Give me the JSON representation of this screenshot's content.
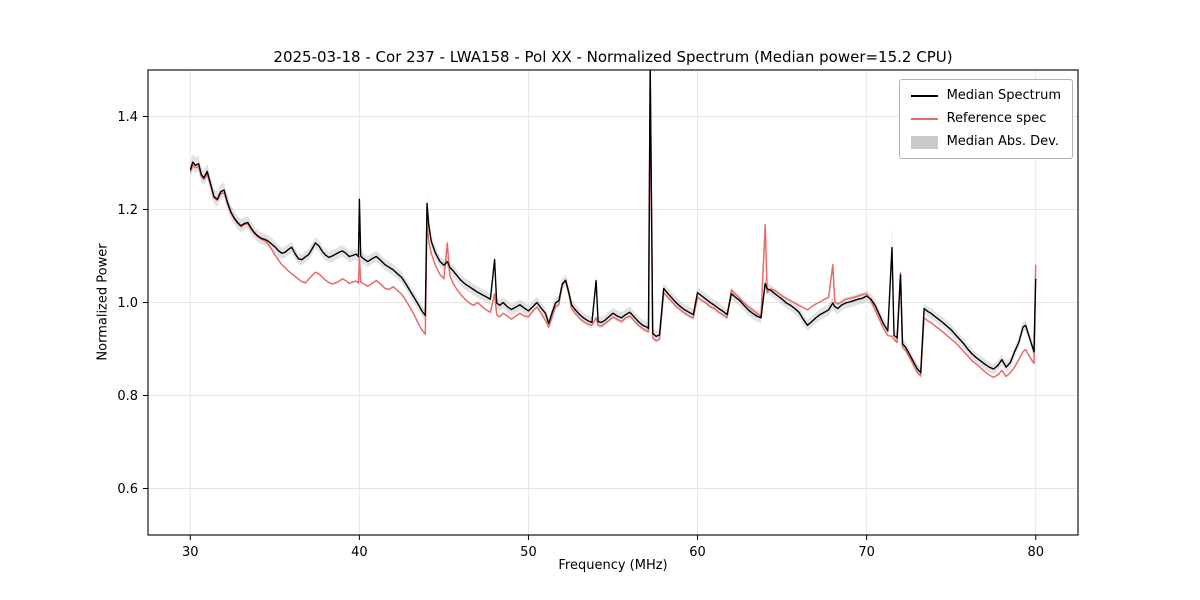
{
  "chart_data": {
    "type": "line",
    "title": "2025-03-18 - Cor 237 - LWA158 - Pol XX - Normalized Spectrum (Median power=15.2 CPU)",
    "xlabel": "Frequency (MHz)",
    "ylabel": "Normalized Power",
    "xlim": [
      27.5,
      82.5
    ],
    "ylim": [
      0.5,
      1.5
    ],
    "x_ticks": [
      30,
      40,
      50,
      60,
      70,
      80
    ],
    "y_ticks": [
      0.6,
      0.8,
      1.0,
      1.2,
      1.4
    ],
    "grid": true,
    "legend_position": "upper right",
    "colors": {
      "median": "#000000",
      "reference": "#ea6a6a",
      "mad_band": "#bfbfbf",
      "grid": "#e5e5e5",
      "frame": "#000000"
    },
    "series": [
      {
        "name": "Median Spectrum",
        "color": "#000000",
        "style": "line"
      },
      {
        "name": "Reference spec",
        "color": "#ea6a6a",
        "style": "line"
      },
      {
        "name": "Median Abs. Dev.",
        "color": "#c9c9c9",
        "style": "patch"
      }
    ],
    "points_format": [
      "frequency_mhz",
      "median",
      "reference",
      "mad"
    ],
    "points": [
      [
        30.0,
        1.285,
        1.28,
        0.018
      ],
      [
        30.15,
        1.302,
        1.295,
        0.018
      ],
      [
        30.3,
        1.295,
        1.29,
        0.017
      ],
      [
        30.5,
        1.298,
        1.292,
        0.017
      ],
      [
        30.65,
        1.275,
        1.272,
        0.016
      ],
      [
        30.8,
        1.268,
        1.265,
        0.016
      ],
      [
        31.0,
        1.282,
        1.276,
        0.016
      ],
      [
        31.2,
        1.255,
        1.252,
        0.016
      ],
      [
        31.4,
        1.228,
        1.225,
        0.016
      ],
      [
        31.6,
        1.222,
        1.22,
        0.016
      ],
      [
        31.8,
        1.238,
        1.234,
        0.016
      ],
      [
        32.0,
        1.242,
        1.236,
        0.016
      ],
      [
        32.2,
        1.215,
        1.212,
        0.015
      ],
      [
        32.4,
        1.195,
        1.192,
        0.015
      ],
      [
        32.6,
        1.182,
        1.18,
        0.015
      ],
      [
        32.8,
        1.172,
        1.17,
        0.014
      ],
      [
        33.0,
        1.165,
        1.163,
        0.014
      ],
      [
        33.2,
        1.17,
        1.168,
        0.014
      ],
      [
        33.4,
        1.172,
        1.169,
        0.014
      ],
      [
        33.6,
        1.16,
        1.158,
        0.014
      ],
      [
        33.8,
        1.15,
        1.148,
        0.013
      ],
      [
        34.0,
        1.143,
        1.141,
        0.013
      ],
      [
        34.2,
        1.138,
        1.136,
        0.013
      ],
      [
        34.4,
        1.136,
        1.133,
        0.013
      ],
      [
        34.6,
        1.132,
        1.126,
        0.013
      ],
      [
        34.8,
        1.126,
        1.115,
        0.013
      ],
      [
        35.0,
        1.12,
        1.103,
        0.013
      ],
      [
        35.2,
        1.112,
        1.092,
        0.013
      ],
      [
        35.4,
        1.106,
        1.082,
        0.012
      ],
      [
        35.6,
        1.108,
        1.075,
        0.012
      ],
      [
        35.8,
        1.114,
        1.068,
        0.012
      ],
      [
        36.0,
        1.119,
        1.062,
        0.012
      ],
      [
        36.2,
        1.105,
        1.056,
        0.012
      ],
      [
        36.4,
        1.094,
        1.05,
        0.012
      ],
      [
        36.6,
        1.092,
        1.045,
        0.012
      ],
      [
        36.8,
        1.098,
        1.042,
        0.012
      ],
      [
        37.0,
        1.103,
        1.05,
        0.012
      ],
      [
        37.2,
        1.115,
        1.058,
        0.012
      ],
      [
        37.4,
        1.128,
        1.065,
        0.012
      ],
      [
        37.6,
        1.122,
        1.062,
        0.012
      ],
      [
        37.8,
        1.11,
        1.055,
        0.012
      ],
      [
        38.0,
        1.102,
        1.048,
        0.012
      ],
      [
        38.2,
        1.097,
        1.043,
        0.012
      ],
      [
        38.4,
        1.1,
        1.04,
        0.012
      ],
      [
        38.6,
        1.104,
        1.042,
        0.012
      ],
      [
        38.8,
        1.108,
        1.046,
        0.012
      ],
      [
        39.0,
        1.111,
        1.051,
        0.012
      ],
      [
        39.2,
        1.106,
        1.047,
        0.012
      ],
      [
        39.4,
        1.099,
        1.041,
        0.012
      ],
      [
        39.6,
        1.101,
        1.044,
        0.012
      ],
      [
        39.8,
        1.104,
        1.046,
        0.012
      ],
      [
        39.95,
        1.099,
        1.042,
        0.013
      ],
      [
        40.0,
        1.222,
        1.098,
        0.038
      ],
      [
        40.08,
        1.1,
        1.044,
        0.014
      ],
      [
        40.25,
        1.094,
        1.04,
        0.012
      ],
      [
        40.5,
        1.088,
        1.035,
        0.012
      ],
      [
        40.75,
        1.094,
        1.041,
        0.012
      ],
      [
        41.0,
        1.099,
        1.047,
        0.012
      ],
      [
        41.25,
        1.091,
        1.04,
        0.012
      ],
      [
        41.5,
        1.082,
        1.031,
        0.012
      ],
      [
        41.75,
        1.076,
        1.028,
        0.012
      ],
      [
        42.0,
        1.07,
        1.034,
        0.012
      ],
      [
        42.25,
        1.062,
        1.026,
        0.012
      ],
      [
        42.5,
        1.054,
        1.018,
        0.012
      ],
      [
        42.75,
        1.04,
        1.004,
        0.012
      ],
      [
        43.0,
        1.025,
        0.989,
        0.012
      ],
      [
        43.25,
        1.01,
        0.973,
        0.012
      ],
      [
        43.5,
        0.995,
        0.954,
        0.012
      ],
      [
        43.7,
        0.982,
        0.941,
        0.012
      ],
      [
        43.9,
        0.972,
        0.932,
        0.012
      ],
      [
        44.0,
        1.213,
        1.172,
        0.02
      ],
      [
        44.1,
        1.168,
        1.132,
        0.016
      ],
      [
        44.25,
        1.132,
        1.106,
        0.014
      ],
      [
        44.5,
        1.106,
        1.08,
        0.013
      ],
      [
        44.75,
        1.089,
        1.061,
        0.012
      ],
      [
        45.0,
        1.08,
        1.051,
        0.012
      ],
      [
        45.2,
        1.088,
        1.128,
        0.013
      ],
      [
        45.35,
        1.076,
        1.058,
        0.012
      ],
      [
        45.55,
        1.068,
        1.041,
        0.012
      ],
      [
        45.75,
        1.059,
        1.029,
        0.012
      ],
      [
        46.0,
        1.048,
        1.017,
        0.012
      ],
      [
        46.25,
        1.04,
        1.007,
        0.012
      ],
      [
        46.5,
        1.034,
        0.999,
        0.012
      ],
      [
        46.75,
        1.028,
        0.994,
        0.012
      ],
      [
        47.0,
        1.022,
        1.0,
        0.012
      ],
      [
        47.25,
        1.017,
        0.991,
        0.012
      ],
      [
        47.5,
        1.012,
        0.984,
        0.012
      ],
      [
        47.75,
        1.007,
        0.979,
        0.012
      ],
      [
        48.0,
        1.092,
        1.019,
        0.015
      ],
      [
        48.12,
        0.999,
        0.974,
        0.012
      ],
      [
        48.3,
        0.994,
        0.969,
        0.012
      ],
      [
        48.5,
        1.0,
        0.977,
        0.012
      ],
      [
        48.75,
        0.991,
        0.971,
        0.012
      ],
      [
        49.0,
        0.985,
        0.964,
        0.012
      ],
      [
        49.25,
        0.99,
        0.971,
        0.012
      ],
      [
        49.5,
        0.995,
        0.977,
        0.012
      ],
      [
        49.75,
        0.988,
        0.971,
        0.012
      ],
      [
        50.0,
        0.982,
        0.969,
        0.012
      ],
      [
        50.25,
        0.991,
        0.981,
        0.012
      ],
      [
        50.5,
        1.0,
        0.99,
        0.012
      ],
      [
        50.75,
        0.988,
        0.977,
        0.012
      ],
      [
        51.0,
        0.977,
        0.961,
        0.012
      ],
      [
        51.2,
        0.955,
        0.947,
        0.012
      ],
      [
        51.4,
        0.978,
        0.968,
        0.012
      ],
      [
        51.6,
        0.999,
        0.99,
        0.012
      ],
      [
        51.8,
        1.004,
        0.996,
        0.012
      ],
      [
        52.0,
        1.04,
        1.039,
        0.012
      ],
      [
        52.2,
        1.048,
        1.045,
        0.012
      ],
      [
        52.4,
        1.02,
        1.017,
        0.012
      ],
      [
        52.55,
        0.995,
        0.987,
        0.012
      ],
      [
        52.75,
        0.985,
        0.977,
        0.012
      ],
      [
        53.0,
        0.975,
        0.967,
        0.012
      ],
      [
        53.25,
        0.967,
        0.959,
        0.012
      ],
      [
        53.5,
        0.961,
        0.954,
        0.012
      ],
      [
        53.75,
        0.957,
        0.951,
        0.012
      ],
      [
        54.0,
        1.047,
        0.967,
        0.014
      ],
      [
        54.12,
        0.959,
        0.951,
        0.012
      ],
      [
        54.3,
        0.957,
        0.949,
        0.012
      ],
      [
        54.5,
        0.961,
        0.954,
        0.012
      ],
      [
        54.75,
        0.969,
        0.961,
        0.012
      ],
      [
        55.0,
        0.977,
        0.969,
        0.012
      ],
      [
        55.25,
        0.971,
        0.964,
        0.012
      ],
      [
        55.5,
        0.967,
        0.959,
        0.012
      ],
      [
        55.75,
        0.974,
        0.967,
        0.012
      ],
      [
        56.0,
        0.979,
        0.971,
        0.012
      ],
      [
        56.25,
        0.969,
        0.961,
        0.012
      ],
      [
        56.5,
        0.959,
        0.951,
        0.012
      ],
      [
        56.75,
        0.951,
        0.944,
        0.012
      ],
      [
        57.0,
        0.947,
        0.939,
        0.012
      ],
      [
        57.1,
        0.944,
        0.937,
        0.012
      ],
      [
        57.2,
        1.505,
        1.495,
        0.015
      ],
      [
        57.35,
        0.934,
        0.924,
        0.012
      ],
      [
        57.55,
        0.927,
        0.917,
        0.012
      ],
      [
        57.75,
        0.93,
        0.921,
        0.012
      ],
      [
        58.0,
        1.03,
        1.021,
        0.012
      ],
      [
        58.25,
        1.019,
        1.011,
        0.012
      ],
      [
        58.5,
        1.009,
        1.001,
        0.012
      ],
      [
        58.75,
        0.999,
        0.991,
        0.012
      ],
      [
        59.0,
        0.991,
        0.984,
        0.012
      ],
      [
        59.25,
        0.984,
        0.977,
        0.012
      ],
      [
        59.5,
        0.979,
        0.971,
        0.012
      ],
      [
        59.75,
        0.974,
        0.967,
        0.012
      ],
      [
        60.0,
        1.021,
        1.011,
        0.012
      ],
      [
        60.25,
        1.014,
        1.004,
        0.012
      ],
      [
        60.5,
        1.007,
        0.999,
        0.012
      ],
      [
        60.75,
        1.0,
        0.991,
        0.012
      ],
      [
        61.0,
        0.994,
        0.987,
        0.012
      ],
      [
        61.25,
        0.987,
        0.979,
        0.012
      ],
      [
        61.5,
        0.981,
        0.974,
        0.012
      ],
      [
        61.75,
        0.974,
        0.967,
        0.012
      ],
      [
        62.0,
        1.019,
        1.027,
        0.012
      ],
      [
        62.25,
        1.011,
        1.017,
        0.012
      ],
      [
        62.5,
        1.004,
        1.009,
        0.012
      ],
      [
        62.75,
        0.994,
        0.999,
        0.012
      ],
      [
        63.0,
        0.984,
        0.991,
        0.012
      ],
      [
        63.25,
        0.977,
        0.984,
        0.012
      ],
      [
        63.5,
        0.971,
        0.977,
        0.012
      ],
      [
        63.75,
        0.967,
        0.971,
        0.012
      ],
      [
        64.0,
        1.041,
        1.167,
        0.014
      ],
      [
        64.12,
        1.029,
        1.021,
        0.012
      ],
      [
        64.3,
        1.027,
        1.029,
        0.012
      ],
      [
        64.5,
        1.021,
        1.027,
        0.012
      ],
      [
        64.75,
        1.014,
        1.021,
        0.012
      ],
      [
        65.0,
        1.007,
        1.014,
        0.012
      ],
      [
        65.25,
        0.999,
        1.009,
        0.012
      ],
      [
        65.5,
        0.994,
        1.004,
        0.012
      ],
      [
        65.75,
        0.987,
        0.999,
        0.012
      ],
      [
        66.0,
        0.979,
        0.994,
        0.012
      ],
      [
        66.25,
        0.964,
        0.989,
        0.012
      ],
      [
        66.5,
        0.951,
        0.984,
        0.012
      ],
      [
        66.75,
        0.959,
        0.991,
        0.012
      ],
      [
        67.0,
        0.967,
        0.997,
        0.012
      ],
      [
        67.25,
        0.974,
        1.001,
        0.012
      ],
      [
        67.5,
        0.979,
        1.007,
        0.012
      ],
      [
        67.75,
        0.984,
        1.011,
        0.012
      ],
      [
        68.0,
        0.999,
        1.081,
        0.013
      ],
      [
        68.12,
        0.991,
        1.001,
        0.012
      ],
      [
        68.3,
        0.987,
        0.997,
        0.012
      ],
      [
        68.5,
        0.994,
        1.001,
        0.012
      ],
      [
        68.75,
        0.999,
        1.007,
        0.012
      ],
      [
        69.0,
        1.001,
        1.009,
        0.012
      ],
      [
        69.25,
        1.004,
        1.011,
        0.012
      ],
      [
        69.5,
        1.007,
        1.014,
        0.012
      ],
      [
        69.75,
        1.009,
        1.017,
        0.012
      ],
      [
        70.0,
        1.014,
        1.019,
        0.012
      ],
      [
        70.25,
        1.007,
        1.004,
        0.012
      ],
      [
        70.5,
        0.994,
        0.984,
        0.012
      ],
      [
        70.75,
        0.974,
        0.964,
        0.012
      ],
      [
        71.0,
        0.954,
        0.944,
        0.012
      ],
      [
        71.25,
        0.939,
        0.929,
        0.012
      ],
      [
        71.5,
        1.118,
        0.927,
        0.042
      ],
      [
        71.62,
        0.929,
        0.921,
        0.013
      ],
      [
        71.8,
        0.924,
        0.914,
        0.012
      ],
      [
        72.0,
        1.059,
        1.064,
        0.018
      ],
      [
        72.12,
        0.911,
        0.904,
        0.012
      ],
      [
        72.3,
        0.904,
        0.897,
        0.012
      ],
      [
        72.5,
        0.891,
        0.884,
        0.011
      ],
      [
        72.75,
        0.874,
        0.867,
        0.011
      ],
      [
        73.0,
        0.857,
        0.849,
        0.011
      ],
      [
        73.2,
        0.849,
        0.842,
        0.011
      ],
      [
        73.4,
        0.987,
        0.967,
        0.011
      ],
      [
        73.6,
        0.981,
        0.961,
        0.011
      ],
      [
        73.8,
        0.977,
        0.957,
        0.011
      ],
      [
        74.0,
        0.971,
        0.951,
        0.011
      ],
      [
        74.25,
        0.964,
        0.944,
        0.011
      ],
      [
        74.5,
        0.957,
        0.937,
        0.011
      ],
      [
        74.75,
        0.949,
        0.929,
        0.011
      ],
      [
        75.0,
        0.941,
        0.921,
        0.011
      ],
      [
        75.25,
        0.931,
        0.914,
        0.011
      ],
      [
        75.5,
        0.921,
        0.904,
        0.011
      ],
      [
        75.75,
        0.911,
        0.894,
        0.011
      ],
      [
        76.0,
        0.899,
        0.884,
        0.011
      ],
      [
        76.25,
        0.889,
        0.874,
        0.011
      ],
      [
        76.5,
        0.881,
        0.867,
        0.011
      ],
      [
        76.75,
        0.874,
        0.859,
        0.011
      ],
      [
        77.0,
        0.867,
        0.851,
        0.011
      ],
      [
        77.25,
        0.861,
        0.844,
        0.011
      ],
      [
        77.5,
        0.857,
        0.839,
        0.011
      ],
      [
        77.75,
        0.864,
        0.844,
        0.011
      ],
      [
        78.0,
        0.877,
        0.854,
        0.011
      ],
      [
        78.25,
        0.861,
        0.841,
        0.011
      ],
      [
        78.5,
        0.871,
        0.849,
        0.011
      ],
      [
        78.75,
        0.894,
        0.861,
        0.011
      ],
      [
        79.0,
        0.914,
        0.877,
        0.011
      ],
      [
        79.25,
        0.947,
        0.894,
        0.011
      ],
      [
        79.4,
        0.951,
        0.899,
        0.011
      ],
      [
        79.55,
        0.934,
        0.889,
        0.011
      ],
      [
        79.75,
        0.911,
        0.877,
        0.011
      ],
      [
        79.9,
        0.894,
        0.869,
        0.011
      ],
      [
        80.0,
        1.051,
        1.081,
        0.013
      ]
    ]
  }
}
